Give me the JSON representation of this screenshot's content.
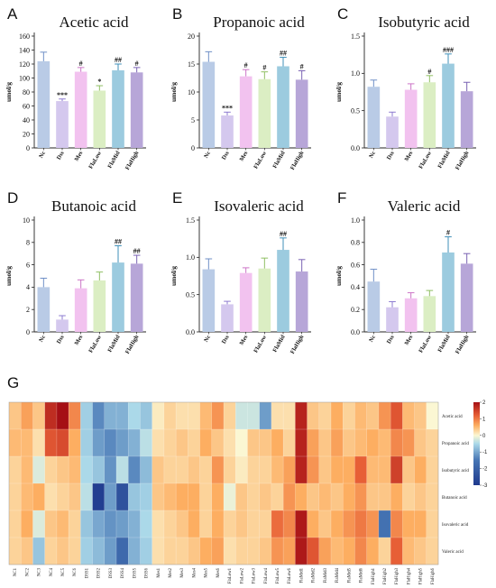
{
  "chart_data": [
    {
      "type": "bar",
      "panel": "A",
      "title": "Acetic acid",
      "ylabel": "umol/g",
      "ylim": [
        0,
        160
      ],
      "yticks": [
        0,
        20,
        40,
        60,
        80,
        100,
        120,
        140,
        160
      ],
      "categories": [
        "Nc",
        "Dss",
        "Mes",
        "FlaLow",
        "FlaMid",
        "FlaHigh"
      ],
      "values": [
        124,
        67,
        109,
        82,
        111,
        108
      ],
      "errors": [
        13,
        3,
        6,
        7,
        9,
        7
      ],
      "significance": [
        "",
        "***",
        "#",
        "*",
        "##",
        "#"
      ]
    },
    {
      "type": "bar",
      "panel": "B",
      "title": "Propanoic acid",
      "ylabel": "umol/g",
      "ylim": [
        0,
        20
      ],
      "yticks": [
        0,
        5,
        10,
        15,
        20
      ],
      "categories": [
        "Nc",
        "Dss",
        "Mes",
        "FlaLow",
        "FlaMid",
        "FlaHigh"
      ],
      "values": [
        15.4,
        5.8,
        12.8,
        12.3,
        14.6,
        12.2
      ],
      "errors": [
        1.8,
        0.6,
        1.2,
        1.3,
        1.6,
        1.6
      ],
      "significance": [
        "",
        "***",
        "#",
        "#",
        "##",
        "#"
      ]
    },
    {
      "type": "bar",
      "panel": "C",
      "title": "Isobutyric acid",
      "ylabel": "umol/g",
      "ylim": [
        0,
        1.5
      ],
      "yticks": [
        0.0,
        0.5,
        1.0,
        1.5
      ],
      "categories": [
        "Nc",
        "Dss",
        "Mes",
        "FlaLow",
        "FlaMid",
        "FlaHigh"
      ],
      "values": [
        0.82,
        0.42,
        0.78,
        0.88,
        1.13,
        0.76
      ],
      "errors": [
        0.09,
        0.06,
        0.08,
        0.09,
        0.13,
        0.12
      ],
      "significance": [
        "",
        "",
        "",
        "#",
        "###",
        ""
      ]
    },
    {
      "type": "bar",
      "panel": "D",
      "title": "Butanoic acid",
      "ylabel": "umol/g",
      "ylim": [
        0,
        10
      ],
      "yticks": [
        0,
        2,
        4,
        6,
        8,
        10
      ],
      "categories": [
        "Nc",
        "Dss",
        "Mes",
        "FlaLow",
        "FlaMid",
        "FlaHigh"
      ],
      "values": [
        4.0,
        1.1,
        3.9,
        4.6,
        6.2,
        6.1
      ],
      "errors": [
        0.8,
        0.35,
        0.75,
        0.75,
        1.5,
        0.75
      ],
      "significance": [
        "",
        "",
        "",
        "",
        "##",
        "##"
      ]
    },
    {
      "type": "bar",
      "panel": "E",
      "title": "Isovaleric acid",
      "ylabel": "umol/g",
      "ylim": [
        0,
        1.5
      ],
      "yticks": [
        0.0,
        0.5,
        1.0,
        1.5
      ],
      "categories": [
        "Nc",
        "Dss",
        "Mes",
        "FlaLow",
        "FlaMid",
        "FlaHigh"
      ],
      "values": [
        0.84,
        0.37,
        0.79,
        0.85,
        1.1,
        0.81
      ],
      "errors": [
        0.14,
        0.04,
        0.07,
        0.14,
        0.16,
        0.16
      ],
      "significance": [
        "",
        "",
        "",
        "",
        "##",
        ""
      ]
    },
    {
      "type": "bar",
      "panel": "F",
      "title": "Valeric acid",
      "ylabel": "umol/g",
      "ylim": [
        0,
        1.0
      ],
      "yticks": [
        0.0,
        0.2,
        0.4,
        0.6,
        0.8,
        1.0
      ],
      "categories": [
        "Nc",
        "Dss",
        "Mes",
        "FlaLow",
        "FlaMid",
        "FlaHigh"
      ],
      "values": [
        0.45,
        0.22,
        0.3,
        0.32,
        0.71,
        0.61
      ],
      "errors": [
        0.11,
        0.05,
        0.05,
        0.05,
        0.14,
        0.09
      ],
      "significance": [
        "",
        "",
        "",
        "",
        "#",
        ""
      ]
    },
    {
      "type": "heatmap",
      "panel": "G",
      "rows": [
        "Acetic acid",
        "Propanoic acid",
        "Isobutyric acid",
        "Butanoic acid",
        "Isovaleric acid",
        "Valeric acid"
      ],
      "columns": [
        "NC1",
        "NC2",
        "NC3",
        "NC4",
        "NC5",
        "NC6",
        "DSS1",
        "DSS2",
        "DSS3",
        "DSS4",
        "DSS5",
        "DSS6",
        "Mes1",
        "Mes2",
        "Mes3",
        "Mes4",
        "Mes5",
        "Mes6",
        "FlaLow1",
        "FlaLow2",
        "FlaLow3",
        "FlaLow4",
        "FlaLow5",
        "FlaLow6",
        "FlaMid1",
        "FlaMid2",
        "FlaMid3",
        "FlaMid4",
        "FlaMid5",
        "FlaMid6",
        "FlaHigh1",
        "FlaHigh2",
        "FlaHigh3",
        "FlaHigh4",
        "FlaHigh5",
        "FlaHigh6"
      ],
      "colorbar": {
        "min": -3,
        "max": 2,
        "ticks": [
          2,
          1,
          0,
          -1,
          -2,
          -3
        ]
      },
      "values": [
        [
          0.4,
          0.7,
          0.4,
          1.7,
          2.2,
          0.9,
          -0.6,
          -1.3,
          -0.9,
          -0.9,
          -0.5,
          -0.7,
          0.1,
          0.3,
          0.2,
          0.2,
          0.5,
          0.8,
          0.3,
          -0.3,
          -0.3,
          -1.1,
          0.2,
          0.2,
          1.8,
          0.4,
          0.3,
          0.6,
          0.3,
          0.5,
          0.4,
          0.8,
          1.3,
          0.5,
          0.4,
          0.0
        ],
        [
          0.5,
          0.5,
          0.2,
          1.3,
          1.4,
          0.6,
          -0.6,
          -1.1,
          -1.3,
          -1.1,
          -0.9,
          -0.4,
          0.2,
          0.3,
          0.4,
          0.3,
          0.6,
          0.4,
          0.2,
          0.0,
          0.4,
          0.4,
          0.6,
          0.3,
          1.8,
          0.7,
          0.4,
          0.7,
          0.4,
          0.5,
          0.6,
          0.5,
          0.9,
          0.8,
          0.4,
          0.3
        ],
        [
          0.3,
          0.5,
          -0.2,
          0.3,
          0.4,
          0.5,
          -0.5,
          -0.7,
          -1.2,
          -0.4,
          -1.3,
          -0.8,
          0.4,
          0.3,
          0.3,
          0.4,
          0.3,
          0.8,
          0.3,
          0.1,
          0.3,
          0.3,
          0.5,
          0.7,
          1.8,
          0.8,
          0.4,
          0.6,
          0.6,
          1.2,
          0.5,
          0.5,
          1.5,
          0.4,
          0.6,
          0.3
        ],
        [
          0.3,
          0.5,
          0.6,
          0.2,
          0.3,
          0.4,
          -0.4,
          -2.9,
          -1.1,
          -2.4,
          -0.7,
          -0.6,
          0.4,
          0.5,
          0.6,
          0.6,
          0.3,
          0.6,
          -0.1,
          0.4,
          0.3,
          0.4,
          0.3,
          0.8,
          0.6,
          0.4,
          0.5,
          0.4,
          0.6,
          0.8,
          0.4,
          0.4,
          0.6,
          0.3,
          0.4,
          0.3
        ],
        [
          0.3,
          0.6,
          -0.2,
          0.4,
          0.5,
          0.3,
          -0.7,
          -1.0,
          -1.2,
          -1.1,
          -0.9,
          -0.5,
          0.2,
          0.3,
          0.4,
          0.6,
          0.3,
          0.6,
          0.3,
          0.4,
          0.3,
          0.3,
          1.1,
          0.9,
          1.9,
          0.6,
          0.4,
          0.6,
          0.8,
          1.0,
          0.8,
          -1.6,
          0.9,
          0.6,
          0.6,
          0.3
        ],
        [
          0.3,
          0.4,
          -0.7,
          0.3,
          0.4,
          0.3,
          -0.6,
          -0.8,
          -1.1,
          -1.8,
          -0.9,
          -0.6,
          0.2,
          0.3,
          0.3,
          0.4,
          0.6,
          0.7,
          0.2,
          0.3,
          0.3,
          0.4,
          0.8,
          0.7,
          1.9,
          1.3,
          0.7,
          0.5,
          0.6,
          0.9,
          0.6,
          0.3,
          1.2,
          0.5,
          0.4,
          0.3
        ]
      ]
    }
  ],
  "colors": {
    "bars": [
      "#b9cbe6",
      "#d4c8ee",
      "#f2c2ef",
      "#dbeec3",
      "#9ccbdf",
      "#b7a6d8"
    ],
    "errors": [
      "#6f8fc6",
      "#8d7bd0",
      "#cc74c6",
      "#8fbf63",
      "#3f8fb8",
      "#7a63b4"
    ],
    "heat_low": "#1f3a8e",
    "heat_mid": "#fbf7d3",
    "heat_high": "#a50f15"
  }
}
